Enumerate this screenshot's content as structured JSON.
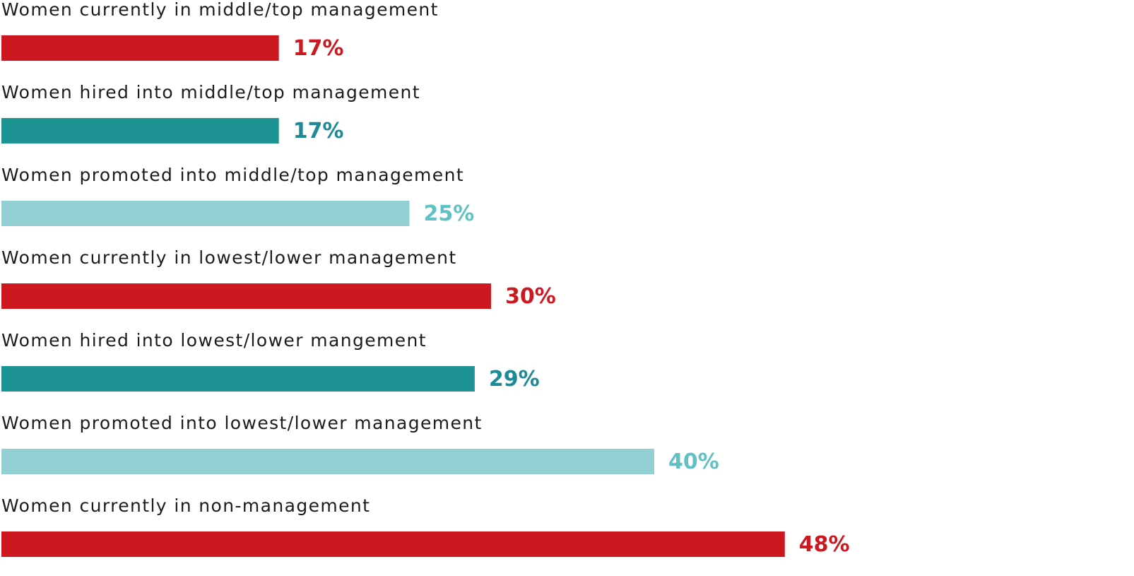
{
  "chart_data": {
    "type": "bar",
    "orientation": "horizontal",
    "categories": [
      "Women currently in middle/top management",
      "Women hired into middle/top management",
      "Women promoted into middle/top management",
      "Women currently in lowest/lower management",
      "Women hired into lowest/lower mangement",
      "Women promoted into lowest/lower management",
      "Women currently in non-management"
    ],
    "values": [
      17,
      17,
      25,
      30,
      29,
      40,
      48
    ],
    "value_labels": [
      "17%",
      "17%",
      "25%",
      "30%",
      "29%",
      "40%",
      "48%"
    ],
    "colors": [
      "#cc181e",
      "#1e9394",
      "#93d0d3",
      "#cc181e",
      "#1e9394",
      "#93d0d3",
      "#cc181e"
    ],
    "label_colors": [
      "#cc181e",
      "#1e8a96",
      "#5fc1c4",
      "#cc181e",
      "#1e8a96",
      "#5fc1c4",
      "#cc181e"
    ],
    "xlim": [
      0,
      100
    ],
    "grid": false,
    "legend": "none"
  }
}
